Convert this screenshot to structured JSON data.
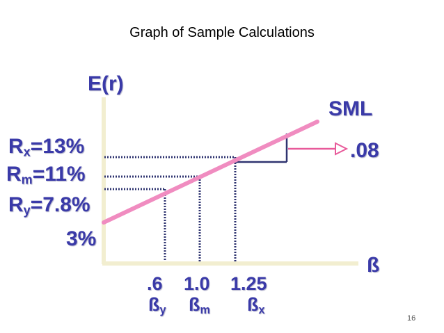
{
  "slide": {
    "title": "Graph of Sample Calculations",
    "page_number": "16"
  },
  "graph": {
    "y_axis_label": "E(r)",
    "x_axis_label": "ß",
    "line_label": "SML",
    "slope_label": ".08",
    "y_labels": [
      {
        "name": "Rx",
        "base": "R",
        "sub": "x",
        "value": "=13%"
      },
      {
        "name": "Rm",
        "base": "R",
        "sub": "m",
        "value": "=11%"
      },
      {
        "name": "Ry",
        "base": "R",
        "sub": "y",
        "value": "=7.8%"
      },
      {
        "name": "rf",
        "value": "3%"
      }
    ],
    "x_ticks": [
      ".6",
      "1.0",
      "1.25"
    ],
    "beta_labels": [
      {
        "base": "ß",
        "sub": "y"
      },
      {
        "base": "ß",
        "sub": "m"
      },
      {
        "base": "ß",
        "sub": "x"
      }
    ],
    "colors": {
      "text": "#3a3aa8",
      "sml_line": "#f08cc0",
      "axes": "#f2eed0",
      "guides": "#2f3470",
      "arrow": "#e85a9a"
    }
  }
}
